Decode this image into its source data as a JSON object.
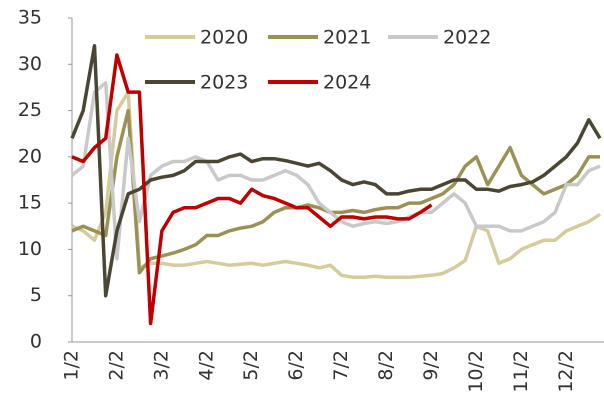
{
  "chart_data": {
    "type": "line",
    "categories": [
      "1/2",
      null,
      null,
      null,
      "2/2",
      null,
      null,
      null,
      "3/2",
      null,
      null,
      null,
      "4/2",
      null,
      null,
      null,
      "5/2",
      null,
      null,
      null,
      "6/2",
      null,
      null,
      null,
      "7/2",
      null,
      null,
      null,
      "8/2",
      null,
      null,
      null,
      "9/2",
      null,
      null,
      null,
      "10/2",
      null,
      null,
      null,
      "11/2",
      null,
      null,
      null,
      "12/2",
      null,
      null,
      null
    ],
    "series": [
      {
        "name": "2020",
        "color": "#d6cb9d",
        "values": [
          12.5,
          12,
          11,
          14,
          25,
          27,
          8,
          8.5,
          8.5,
          8.3,
          8.3,
          8.5,
          8.7,
          8.5,
          8.3,
          8.4,
          8.5,
          8.3,
          8.5,
          8.7,
          8.5,
          8.3,
          8.0,
          8.3,
          7.2,
          7.0,
          7.0,
          7.1,
          7.0,
          7.0,
          7.0,
          7.1,
          7.2,
          7.4,
          8.0,
          8.8,
          12.5,
          12,
          8.5,
          9,
          10,
          10.5,
          11,
          11,
          12,
          12.5,
          13,
          13.8
        ]
      },
      {
        "name": "2021",
        "color": "#9c9155",
        "values": [
          12,
          12.5,
          12,
          11.5,
          20,
          25,
          7.5,
          9,
          9.3,
          9.6,
          10,
          10.5,
          11.5,
          11.5,
          12,
          12.3,
          12.5,
          13,
          14,
          14.5,
          14.5,
          14.8,
          14.5,
          14,
          14,
          14.2,
          14,
          14.3,
          14.5,
          14.5,
          15,
          15,
          15.5,
          16,
          17,
          19,
          20,
          17,
          19,
          21,
          18,
          17,
          16,
          16.5,
          17,
          18,
          20,
          20
        ]
      },
      {
        "name": "2022",
        "color": "#c9c9c9",
        "values": [
          18,
          19,
          27,
          28,
          9,
          22,
          13,
          18,
          19,
          19.5,
          19.5,
          20,
          19.5,
          17.5,
          18,
          18,
          17.5,
          17.5,
          18,
          18.5,
          18,
          17,
          15,
          14,
          13,
          12.5,
          12.8,
          13,
          12.8,
          13,
          13.5,
          14,
          14,
          15,
          16,
          15,
          12.5,
          12.5,
          12.5,
          12,
          12,
          12.5,
          13,
          14,
          17,
          17,
          18.5,
          19
        ]
      },
      {
        "name": "2023",
        "color": "#4b4631",
        "values": [
          22,
          25,
          32,
          5,
          12,
          16,
          16.5,
          17.5,
          17.8,
          18,
          18.5,
          19.5,
          19.5,
          19.5,
          20,
          20.3,
          19.5,
          19.8,
          19.8,
          19.6,
          19.3,
          19,
          19.3,
          18.5,
          17.5,
          17,
          17.3,
          17,
          16,
          16,
          16.3,
          16.5,
          16.5,
          17,
          17.5,
          17.5,
          16.5,
          16.5,
          16.3,
          16.8,
          17,
          17.3,
          18,
          19,
          20,
          21.5,
          24,
          22
        ]
      },
      {
        "name": "2024",
        "color": "#c00000",
        "values": [
          20,
          19.5,
          21,
          22,
          31,
          27,
          27,
          2,
          12,
          14,
          14.5,
          14.5,
          15,
          15.5,
          15.5,
          15,
          16.5,
          15.8,
          15.5,
          15,
          14.5,
          14.5,
          13.5,
          12.5,
          13.5,
          13.5,
          13.3,
          13.5,
          13.5,
          13.3,
          13.3,
          14,
          14.8,
          null,
          null,
          null,
          null,
          null,
          null,
          null,
          null,
          null,
          null,
          null,
          null,
          null,
          null,
          null
        ]
      }
    ],
    "ylim": [
      0,
      35
    ],
    "yticks": [
      0,
      5,
      10,
      15,
      20,
      25,
      30,
      35
    ]
  }
}
